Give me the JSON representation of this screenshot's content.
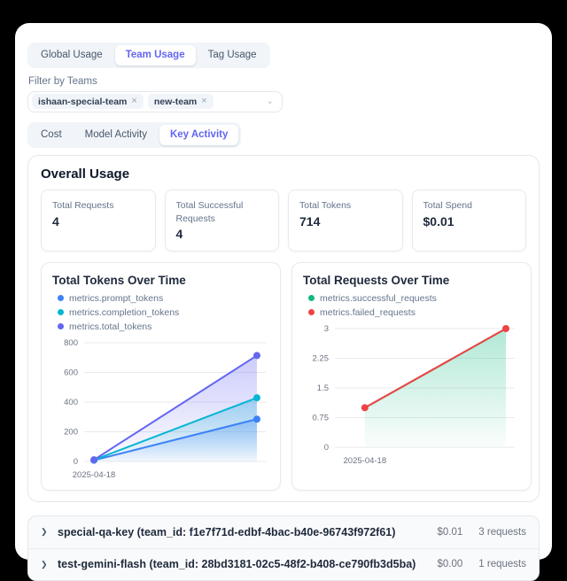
{
  "colors": {
    "accent": "#6366f1",
    "page_background": "#000000",
    "prompt_tokens": "#3b82f6",
    "completion_tokens": "#06b6d4",
    "total_tokens": "#6366f1",
    "successful_requests": "#10b981",
    "failed_requests": "#ef4444"
  },
  "tabs_primary": [
    {
      "label": "Global Usage",
      "active": false
    },
    {
      "label": "Team Usage",
      "active": true
    },
    {
      "label": "Tag Usage",
      "active": false
    }
  ],
  "filter": {
    "label": "Filter by Teams",
    "tags": [
      "ishaan-special-team",
      "new-team"
    ],
    "remove_glyph": "×",
    "chevron_glyph": "⌄"
  },
  "tabs_secondary": [
    {
      "label": "Cost",
      "active": false
    },
    {
      "label": "Model Activity",
      "active": false
    },
    {
      "label": "Key Activity",
      "active": true
    }
  ],
  "overall_usage": {
    "title": "Overall Usage",
    "stats": [
      {
        "label": "Total Requests",
        "value": "4"
      },
      {
        "label": "Total Successful Requests",
        "value": "4"
      },
      {
        "label": "Total Tokens",
        "value": "714"
      },
      {
        "label": "Total Spend",
        "value": "$0.01"
      }
    ]
  },
  "chart_data": [
    {
      "type": "line",
      "title": "Total Tokens Over Time",
      "x": [
        "2025-04-18",
        ""
      ],
      "x_tick_labels": [
        "2025-04-18"
      ],
      "series": [
        {
          "name": "metrics.prompt_tokens",
          "color": "#3b82f6",
          "values": [
            8,
            285
          ],
          "area": true,
          "markers": true
        },
        {
          "name": "metrics.completion_tokens",
          "color": "#06b6d4",
          "values": [
            10,
            429
          ],
          "area": true,
          "markers": true
        },
        {
          "name": "metrics.total_tokens",
          "color": "#6366f1",
          "values": [
            11,
            714
          ],
          "area": true,
          "markers": true
        }
      ],
      "ylim": [
        0,
        800
      ],
      "yticks": [
        0,
        200,
        400,
        600,
        800
      ],
      "grid": true,
      "legend_position": "top"
    },
    {
      "type": "line",
      "title": "Total Requests Over Time",
      "x": [
        "2025-04-18",
        ""
      ],
      "x_tick_labels": [
        "2025-04-18"
      ],
      "series": [
        {
          "name": "metrics.successful_requests",
          "color": "#10b981",
          "values": [
            1,
            3
          ],
          "area": true,
          "markers": false
        },
        {
          "name": "metrics.failed_requests",
          "color": "#ef4444",
          "values": [
            1,
            3
          ],
          "area": false,
          "markers": true
        }
      ],
      "ylim": [
        0,
        3
      ],
      "yticks": [
        0,
        0.75,
        1.5,
        2.25,
        3
      ],
      "grid": true,
      "legend_position": "top"
    }
  ],
  "keys": [
    {
      "name": "special-qa-key (team_id: f1e7f71d-edbf-4bac-b40e-96743f972f61)",
      "spend": "$0.01",
      "requests": "3 requests",
      "chevron_glyph": "❯"
    },
    {
      "name": "test-gemini-flash (team_id: 28bd3181-02c5-48f2-b408-ce790fb3d5ba)",
      "spend": "$0.00",
      "requests": "1 requests",
      "chevron_glyph": "❯"
    }
  ]
}
